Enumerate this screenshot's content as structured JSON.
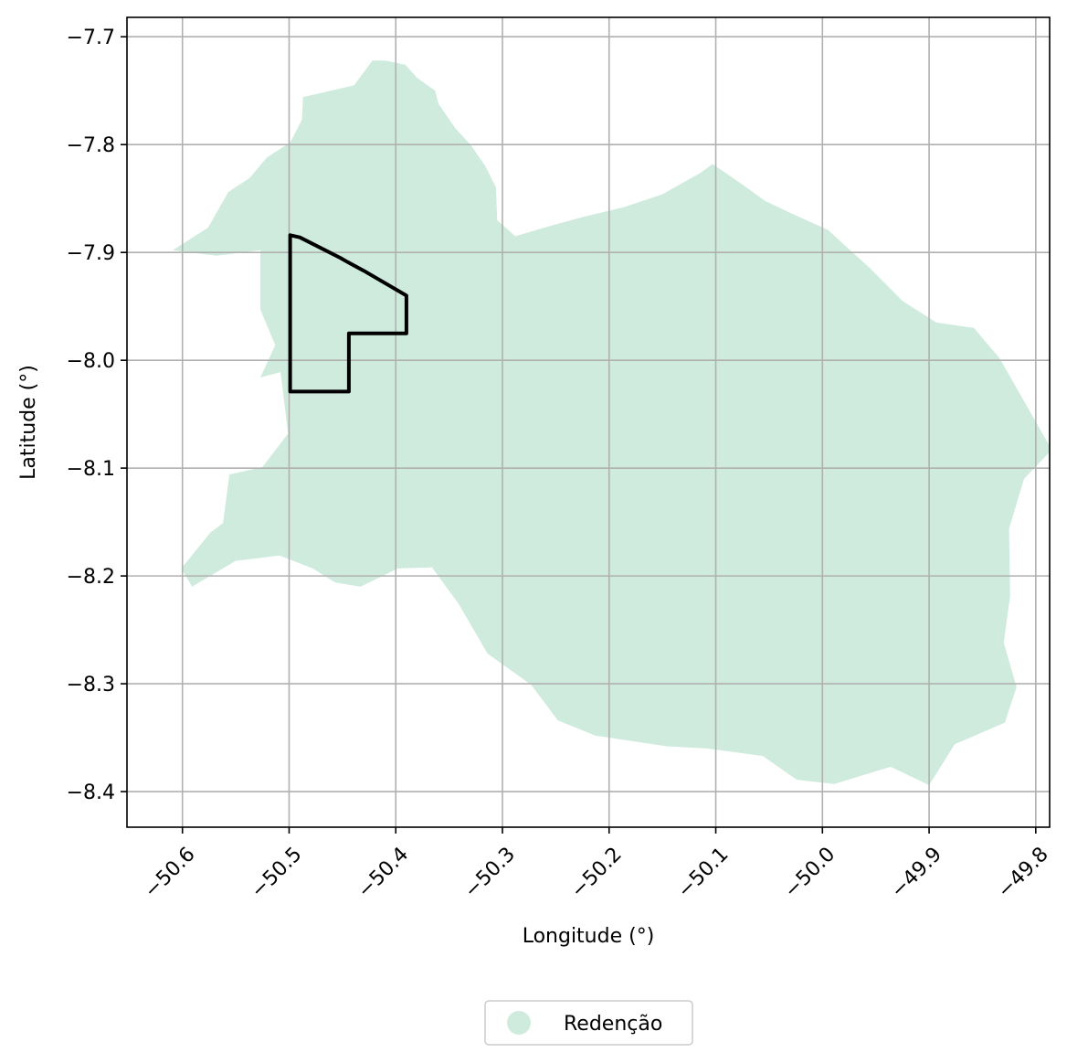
{
  "map": {
    "xlabel": "Longitude (°)",
    "ylabel": "Latitude (°)",
    "xlim": [
      -50.652,
      -49.787
    ],
    "ylim": [
      -8.433,
      -7.682
    ],
    "xticks": [
      -50.6,
      -50.5,
      -50.4,
      -50.3,
      -50.2,
      -50.1,
      -50.0,
      -49.9,
      -49.8
    ],
    "xtick_labels": [
      "−50.6",
      "−50.5",
      "−50.4",
      "−50.3",
      "−50.2",
      "−50.1",
      "−50.0",
      "−49.9",
      "−49.8"
    ],
    "yticks": [
      -7.7,
      -7.8,
      -7.9,
      -8.0,
      -8.1,
      -8.2,
      -8.3,
      -8.4
    ],
    "ytick_labels": [
      "−7.7",
      "−7.8",
      "−7.9",
      "−8.0",
      "−8.1",
      "−8.2",
      "−8.3",
      "−8.4"
    ],
    "grid": true,
    "legend": {
      "placement": "below-center",
      "label": "Redenção"
    },
    "colors": {
      "municipality_fill": "#cfebde",
      "area_outline": "#000000",
      "grid": "#b0b0b0",
      "axes": "#000000"
    },
    "municipality_boundary": [
      [
        -50.391,
        -7.726
      ],
      [
        -50.38,
        -7.738
      ],
      [
        -50.363,
        -7.75
      ],
      [
        -50.36,
        -7.762
      ],
      [
        -50.344,
        -7.785
      ],
      [
        -50.33,
        -7.8
      ],
      [
        -50.316,
        -7.82
      ],
      [
        -50.306,
        -7.84
      ],
      [
        -50.305,
        -7.87
      ],
      [
        -50.288,
        -7.885
      ],
      [
        -50.254,
        -7.875
      ],
      [
        -50.224,
        -7.867
      ],
      [
        -50.186,
        -7.858
      ],
      [
        -50.15,
        -7.846
      ],
      [
        -50.114,
        -7.826
      ],
      [
        -50.103,
        -7.818
      ],
      [
        -50.075,
        -7.837
      ],
      [
        -50.054,
        -7.852
      ],
      [
        -50.031,
        -7.863
      ],
      [
        -49.995,
        -7.879
      ],
      [
        -49.955,
        -7.915
      ],
      [
        -49.925,
        -7.945
      ],
      [
        -49.893,
        -7.965
      ],
      [
        -49.858,
        -7.97
      ],
      [
        -49.834,
        -7.998
      ],
      [
        -49.785,
        -8.083
      ],
      [
        -49.811,
        -8.11
      ],
      [
        -49.825,
        -8.156
      ],
      [
        -49.824,
        -8.218
      ],
      [
        -49.83,
        -8.262
      ],
      [
        -49.818,
        -8.303
      ],
      [
        -49.829,
        -8.336
      ],
      [
        -49.876,
        -8.356
      ],
      [
        -49.9,
        -8.394
      ],
      [
        -49.936,
        -8.377
      ],
      [
        -49.989,
        -8.393
      ],
      [
        -50.024,
        -8.389
      ],
      [
        -50.056,
        -8.367
      ],
      [
        -50.108,
        -8.36
      ],
      [
        -50.146,
        -8.358
      ],
      [
        -50.213,
        -8.348
      ],
      [
        -50.248,
        -8.334
      ],
      [
        -50.273,
        -8.301
      ],
      [
        -50.314,
        -8.272
      ],
      [
        -50.341,
        -8.226
      ],
      [
        -50.366,
        -8.192
      ],
      [
        -50.398,
        -8.193
      ],
      [
        -50.433,
        -8.21
      ],
      [
        -50.457,
        -8.206
      ],
      [
        -50.478,
        -8.193
      ],
      [
        -50.509,
        -8.181
      ],
      [
        -50.55,
        -8.186
      ],
      [
        -50.591,
        -8.21
      ],
      [
        -50.601,
        -8.193
      ],
      [
        -50.574,
        -8.16
      ],
      [
        -50.562,
        -8.151
      ],
      [
        -50.556,
        -8.106
      ],
      [
        -50.525,
        -8.099
      ],
      [
        -50.501,
        -8.068
      ],
      [
        -50.508,
        -8.011
      ],
      [
        -50.527,
        -8.016
      ],
      [
        -50.513,
        -7.986
      ],
      [
        -50.527,
        -7.953
      ],
      [
        -50.527,
        -7.898
      ],
      [
        -50.568,
        -7.903
      ],
      [
        -50.609,
        -7.898
      ],
      [
        -50.576,
        -7.877
      ],
      [
        -50.557,
        -7.844
      ],
      [
        -50.537,
        -7.831
      ],
      [
        -50.521,
        -7.812
      ],
      [
        -50.499,
        -7.798
      ],
      [
        -50.488,
        -7.777
      ],
      [
        -50.487,
        -7.756
      ],
      [
        -50.439,
        -7.745
      ],
      [
        -50.422,
        -7.722
      ],
      [
        -50.41,
        -7.722
      ]
    ],
    "area_outline": [
      [
        -50.499,
        -7.884
      ],
      [
        -50.49,
        -7.886
      ],
      [
        -50.472,
        -7.895
      ],
      [
        -50.452,
        -7.905
      ],
      [
        -50.445,
        -7.909
      ],
      [
        -50.43,
        -7.917
      ],
      [
        -50.39,
        -7.94
      ],
      [
        -50.39,
        -7.975
      ],
      [
        -50.444,
        -7.975
      ],
      [
        -50.444,
        -8.029
      ],
      [
        -50.499,
        -8.029
      ]
    ]
  }
}
